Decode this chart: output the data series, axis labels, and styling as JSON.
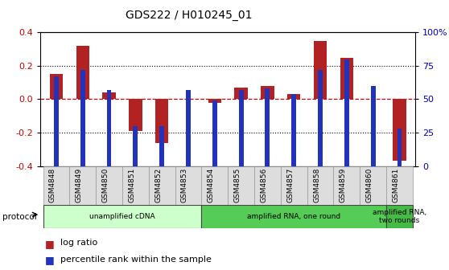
{
  "title": "GDS222 / H010245_01",
  "samples": [
    "GSM4848",
    "GSM4849",
    "GSM4850",
    "GSM4851",
    "GSM4852",
    "GSM4853",
    "GSM4854",
    "GSM4855",
    "GSM4856",
    "GSM4857",
    "GSM4858",
    "GSM4859",
    "GSM4860",
    "GSM4861"
  ],
  "log_ratio": [
    0.15,
    0.32,
    0.04,
    -0.19,
    -0.26,
    0.0,
    -0.02,
    0.07,
    0.08,
    0.03,
    0.35,
    0.25,
    0.0,
    -0.37
  ],
  "percentile": [
    67,
    72,
    57,
    30,
    30,
    57,
    49,
    57,
    58,
    54,
    72,
    80,
    60,
    28
  ],
  "bar_color": "#b22222",
  "pct_color": "#2233bb",
  "zero_line_color": "#cc0000",
  "dotted_line_color": "#000000",
  "ylim": [
    -0.4,
    0.4
  ],
  "yticks_left": [
    -0.4,
    -0.2,
    0.0,
    0.2,
    0.4
  ],
  "yticks_right": [
    0,
    25,
    50,
    75,
    100
  ],
  "protocols": [
    {
      "label": "unamplified cDNA",
      "start": 0,
      "end": 6,
      "color": "#ccffcc"
    },
    {
      "label": "amplified RNA, one round",
      "start": 6,
      "end": 13,
      "color": "#55cc55"
    },
    {
      "label": "amplified RNA,\ntwo rounds",
      "start": 13,
      "end": 14,
      "color": "#44bb44"
    }
  ],
  "protocol_label": "protocol",
  "legend_entries": [
    "log ratio",
    "percentile rank within the sample"
  ],
  "bg_color": "#ffffff",
  "tick_label_color_left": "#cc0000",
  "tick_label_color_right": "#0000cc",
  "bar_width": 0.5,
  "pct_bar_width": 0.18
}
